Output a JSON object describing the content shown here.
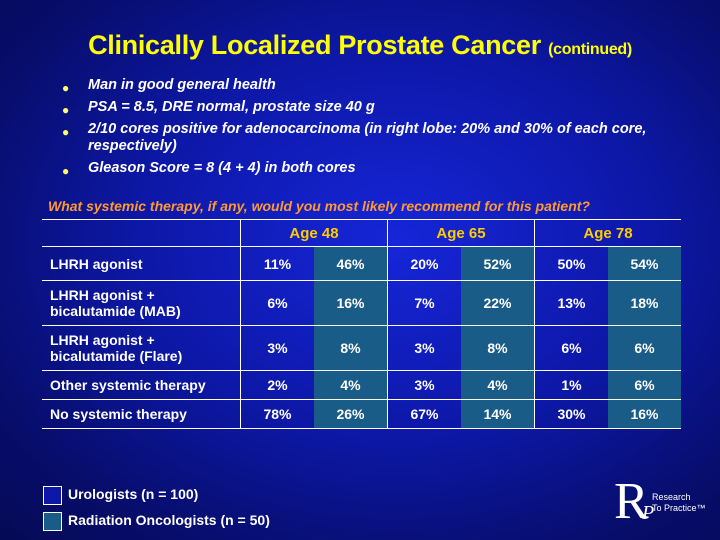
{
  "title": {
    "main": "Clinically Localized Prostate Cancer",
    "sub": "(continued)"
  },
  "bullets": [
    "Man in good general health",
    "PSA = 8.5, DRE normal, prostate size 40 g",
    "2/10 cores positive for adenocarcinoma (in right lobe: 20% and 30% of each core, respectively)",
    "Gleason Score = 8 (4 + 4) in both cores"
  ],
  "bullet_glyph": "●",
  "question": "What systemic therapy, if any, would you most likely recommend for this patient?",
  "table": {
    "headers": [
      "Age 48",
      "Age 65",
      "Age 78"
    ],
    "rows": [
      {
        "label": "LHRH agonist",
        "values": [
          "11%",
          "46%",
          "20%",
          "52%",
          "50%",
          "54%"
        ]
      },
      {
        "label": "LHRH agonist + bicalutamide (MAB)",
        "values": [
          "6%",
          "16%",
          "7%",
          "22%",
          "13%",
          "18%"
        ]
      },
      {
        "label": "LHRH agonist + bicalutamide (Flare)",
        "values": [
          "3%",
          "8%",
          "3%",
          "8%",
          "6%",
          "6%"
        ]
      },
      {
        "label": "Other systemic therapy",
        "values": [
          "2%",
          "4%",
          "3%",
          "4%",
          "1%",
          "6%"
        ]
      },
      {
        "label": "No systemic therapy",
        "values": [
          "78%",
          "26%",
          "67%",
          "14%",
          "30%",
          "16%"
        ]
      }
    ]
  },
  "legend": [
    {
      "label": "Urologists  (n = 100)",
      "color": "#0d18a8"
    },
    {
      "label": "Radiation Oncologists  (n = 50)",
      "color": "#1a5c88"
    }
  ],
  "logo": {
    "letter_r": "R",
    "letter_p": "P",
    "line1": "Research",
    "line2": "To Practice™"
  },
  "colors": {
    "title": "#ffff00",
    "question": "#ff9933",
    "header": "#ffcc00",
    "background": "#0d18a8"
  }
}
